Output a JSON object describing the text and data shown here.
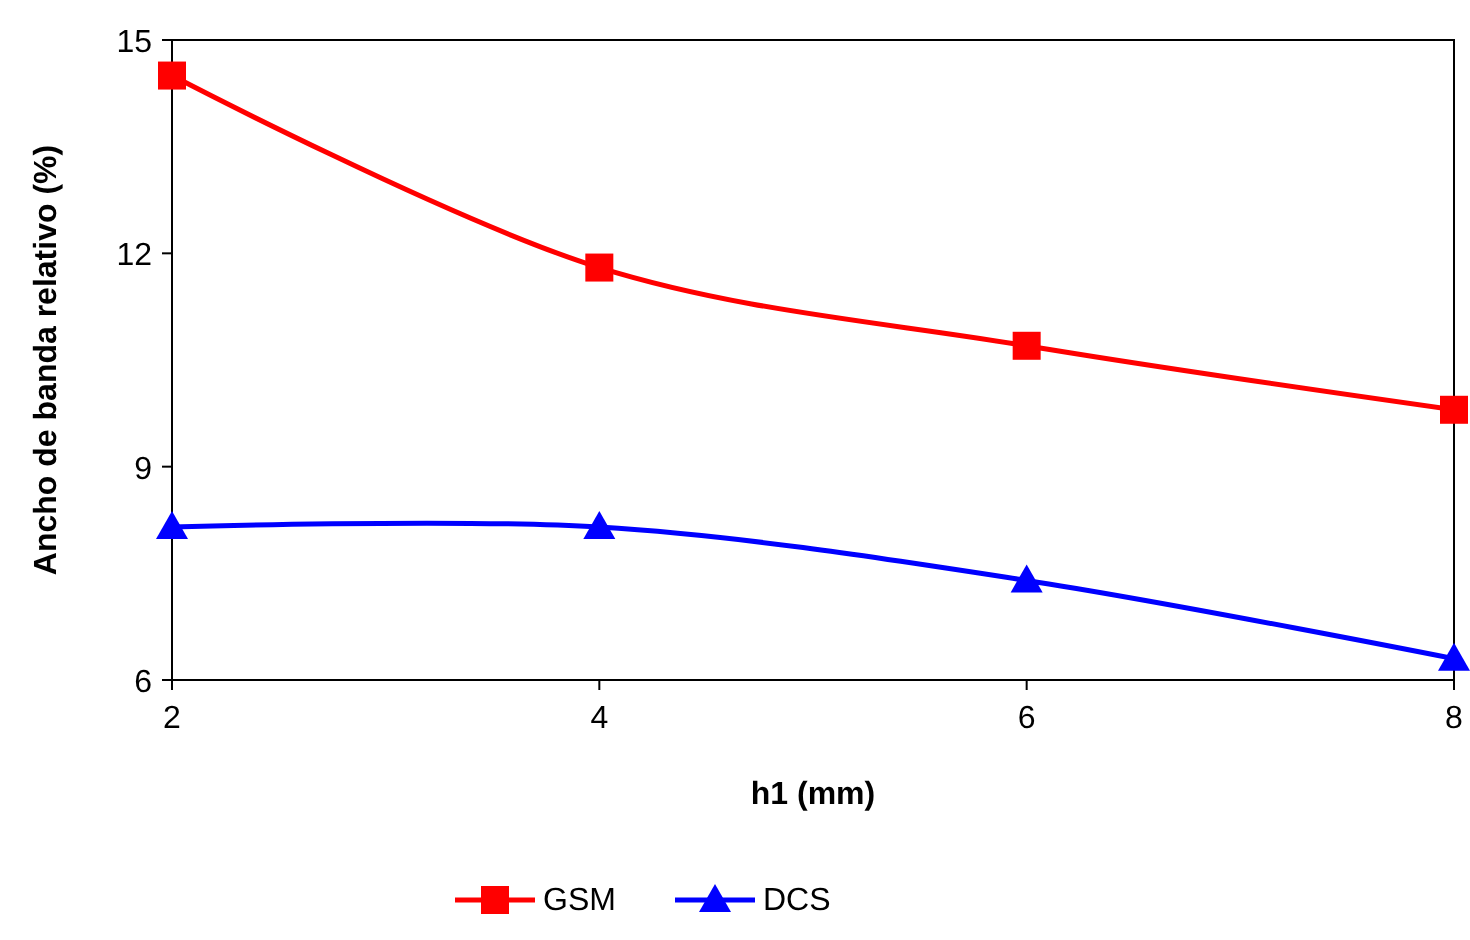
{
  "chart_data": {
    "type": "line",
    "xlabel": "h1 (mm)",
    "ylabel": "Ancho de banda relativo (%)",
    "x": [
      2,
      4,
      6,
      8
    ],
    "series": [
      {
        "name": "GSM",
        "color": "#ff0000",
        "marker": "square",
        "values": [
          14.5,
          11.8,
          10.7,
          9.8
        ]
      },
      {
        "name": "DCS",
        "color": "#0000ff",
        "marker": "triangle",
        "values": [
          8.15,
          8.15,
          7.4,
          6.3
        ]
      }
    ],
    "xlim": [
      2,
      8
    ],
    "xticks": [
      2,
      4,
      6,
      8
    ],
    "ylim": [
      6,
      15
    ],
    "yticks": [
      6,
      9,
      12,
      15
    ],
    "grid": false,
    "legend": "bottom",
    "line_style": "solid"
  }
}
